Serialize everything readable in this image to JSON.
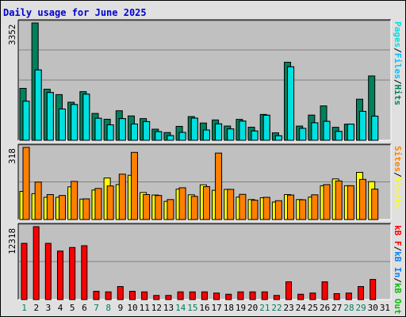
{
  "title": "Daily usage for June 2025",
  "colors": {
    "background": "#E0E0E0",
    "panel": "#C0C0C0",
    "gridline": "#808080",
    "hits": "#00805C",
    "files": "#00C0FF",
    "pages": "#00E0E0",
    "visits": "#FFFF00",
    "sites": "#FF8000",
    "kbin": "#0080FF",
    "kbout": "#00C000",
    "kbf": "#FF0000",
    "weekend_day": "#00805C",
    "weekday_day": "#000000"
  },
  "chart_data": [
    {
      "type": "bar",
      "panel": "hits-files-pages",
      "ymax_label": "3352",
      "ylim": [
        0,
        3352
      ],
      "legend": [
        {
          "text": "Pages",
          "color": "#00E0E0"
        },
        {
          "text": "/",
          "color": "#000000"
        },
        {
          "text": "Files",
          "color": "#00C0FF"
        },
        {
          "text": "/",
          "color": "#000000"
        },
        {
          "text": "Hits",
          "color": "#00805C"
        }
      ],
      "categories": [
        "1",
        "2",
        "3",
        "4",
        "5",
        "6",
        "7",
        "8",
        "9",
        "10",
        "11",
        "12",
        "13",
        "14",
        "15",
        "16",
        "17",
        "18",
        "19",
        "20",
        "21",
        "22",
        "23",
        "24",
        "25",
        "26",
        "27",
        "28",
        "29",
        "30",
        "31"
      ],
      "series": [
        {
          "name": "Hits",
          "values": [
            1483,
            3352,
            1459,
            1305,
            1087,
            1390,
            767,
            601,
            844,
            696,
            620,
            317,
            221,
            397,
            677,
            493,
            581,
            407,
            598,
            374,
            739,
            213,
            2230,
            406,
            721,
            982,
            371,
            461,
            1174,
            1838,
            0
          ]
        },
        {
          "name": "Files",
          "values": [
            1116,
            2010,
            1365,
            894,
            1022,
            1318,
            629,
            441,
            619,
            465,
            534,
            246,
            132,
            225,
            633,
            294,
            468,
            324,
            548,
            265,
            716,
            128,
            2100,
            341,
            500,
            541,
            253,
            461,
            827,
            689,
            0
          ]
        },
        {
          "name": "Pages",
          "values": [
            1116,
            2010,
            1365,
            894,
            1022,
            1318,
            629,
            441,
            619,
            465,
            534,
            246,
            132,
            225,
            633,
            294,
            468,
            324,
            548,
            265,
            716,
            128,
            2100,
            341,
            500,
            541,
            253,
            461,
            827,
            689,
            0
          ]
        }
      ]
    },
    {
      "type": "bar",
      "panel": "visits-sites",
      "ymax_label": "318",
      "ylim": [
        0,
        318
      ],
      "legend": [
        {
          "text": "Sites",
          "color": "#FF8000"
        },
        {
          "text": "/",
          "color": "#000000"
        },
        {
          "text": "Visits",
          "color": "#FFFF00"
        }
      ],
      "categories": [
        "1",
        "2",
        "3",
        "4",
        "5",
        "6",
        "7",
        "8",
        "9",
        "10",
        "11",
        "12",
        "13",
        "14",
        "15",
        "16",
        "17",
        "18",
        "19",
        "20",
        "21",
        "22",
        "23",
        "24",
        "25",
        "26",
        "27",
        "28",
        "29",
        "30",
        "31"
      ],
      "series": [
        {
          "name": "Visits",
          "values": [
            124,
            114,
            98,
            98,
            144,
            90,
            130,
            183,
            154,
            195,
            119,
            108,
            80,
            134,
            109,
            153,
            129,
            133,
            99,
            88,
            96,
            77,
            110,
            88,
            99,
            149,
            179,
            149,
            208,
            167,
            0
          ]
        },
        {
          "name": "Sites",
          "values": [
            318,
            165,
            110,
            106,
            168,
            91,
            137,
            148,
            200,
            296,
            110,
            106,
            88,
            140,
            102,
            145,
            293,
            133,
            111,
            85,
            98,
            83,
            108,
            87,
            109,
            154,
            170,
            149,
            177,
            134,
            0
          ]
        }
      ]
    },
    {
      "type": "bar",
      "panel": "kbf-kbin-kbout",
      "ymax_label": "12318",
      "ylim": [
        0,
        12318
      ],
      "legend": [
        {
          "text": "kB F",
          "color": "#FF0000"
        },
        {
          "text": "/",
          "color": "#000000"
        },
        {
          "text": "kB In",
          "color": "#0080FF"
        },
        {
          "text": "/",
          "color": "#000000"
        },
        {
          "text": "kB Out",
          "color": "#00C000"
        }
      ],
      "categories": [
        "1",
        "2",
        "3",
        "4",
        "5",
        "6",
        "7",
        "8",
        "9",
        "10",
        "11",
        "12",
        "13",
        "14",
        "15",
        "16",
        "17",
        "18",
        "19",
        "20",
        "21",
        "22",
        "23",
        "24",
        "25",
        "26",
        "27",
        "28",
        "29",
        "30",
        "31"
      ],
      "series": [
        {
          "name": "kB F",
          "values": [
            9500,
            12318,
            9500,
            8200,
            8800,
            9100,
            1400,
            1300,
            2200,
            1400,
            1300,
            700,
            700,
            1300,
            1300,
            1300,
            1100,
            900,
            1300,
            1300,
            1300,
            700,
            3000,
            900,
            1100,
            3000,
            1000,
            1100,
            2200,
            3400,
            0
          ]
        }
      ]
    }
  ],
  "x_axis": {
    "days": [
      {
        "label": "1",
        "weekend": true
      },
      {
        "label": "2",
        "weekend": false
      },
      {
        "label": "3",
        "weekend": false
      },
      {
        "label": "4",
        "weekend": false
      },
      {
        "label": "5",
        "weekend": false
      },
      {
        "label": "6",
        "weekend": false
      },
      {
        "label": "7",
        "weekend": true
      },
      {
        "label": "8",
        "weekend": true
      },
      {
        "label": "9",
        "weekend": false
      },
      {
        "label": "10",
        "weekend": false
      },
      {
        "label": "11",
        "weekend": false
      },
      {
        "label": "12",
        "weekend": false
      },
      {
        "label": "13",
        "weekend": false
      },
      {
        "label": "14",
        "weekend": true
      },
      {
        "label": "15",
        "weekend": true
      },
      {
        "label": "16",
        "weekend": false
      },
      {
        "label": "17",
        "weekend": false
      },
      {
        "label": "18",
        "weekend": false
      },
      {
        "label": "19",
        "weekend": false
      },
      {
        "label": "20",
        "weekend": false
      },
      {
        "label": "21",
        "weekend": true
      },
      {
        "label": "22",
        "weekend": true
      },
      {
        "label": "23",
        "weekend": false
      },
      {
        "label": "24",
        "weekend": false
      },
      {
        "label": "25",
        "weekend": false
      },
      {
        "label": "26",
        "weekend": false
      },
      {
        "label": "27",
        "weekend": false
      },
      {
        "label": "28",
        "weekend": true
      },
      {
        "label": "29",
        "weekend": true
      },
      {
        "label": "30",
        "weekend": false
      },
      {
        "label": "31",
        "weekend": false
      }
    ]
  }
}
